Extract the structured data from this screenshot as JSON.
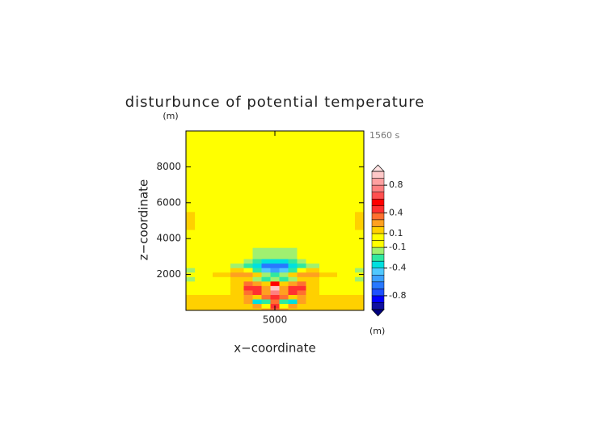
{
  "chart_data": {
    "type": "contour",
    "title": "disturbunce of potential temperature",
    "time_label": "1560 s",
    "x_label": "x−coordinate",
    "y_label": "z−coordinate",
    "x_unit": "(m)",
    "y_unit": "(m)",
    "xlim": [
      0,
      10000
    ],
    "ylim": [
      0,
      10000
    ],
    "xticks": [
      5000
    ],
    "yticks": [
      2000,
      4000,
      6000,
      8000
    ],
    "x": [
      0,
      1000,
      2000,
      3000,
      3500,
      4000,
      4500,
      5000,
      5500,
      6000,
      6500,
      7000,
      8000,
      9000,
      10000
    ],
    "y": [
      0,
      250,
      500,
      750,
      1000,
      1250,
      1500,
      1750,
      2000,
      2250,
      2500,
      2750,
      3000,
      4000,
      5000,
      6000,
      8000,
      10000
    ],
    "z": [
      [
        0.15,
        0.15,
        0.15,
        0.15,
        0.15,
        0.15,
        0.2,
        0.3,
        0.2,
        0.15,
        0.15,
        0.15,
        0.15,
        0.15,
        0.15
      ],
      [
        0.15,
        0.15,
        0.15,
        0.15,
        0.15,
        0.2,
        -0.1,
        0.4,
        -0.1,
        0.2,
        0.15,
        0.15,
        0.15,
        0.15,
        0.15
      ],
      [
        0.15,
        0.15,
        0.15,
        0.15,
        0.2,
        -0.35,
        -0.3,
        0.3,
        -0.3,
        -0.35,
        0.2,
        0.15,
        0.15,
        0.15,
        0.15
      ],
      [
        0.15,
        0.15,
        0.15,
        0.15,
        0.2,
        0.1,
        0.3,
        0.45,
        0.3,
        0.1,
        0.2,
        0.15,
        0.15,
        0.15,
        0.15
      ],
      [
        0.05,
        0.05,
        0.05,
        0.15,
        0.35,
        0.45,
        0.2,
        0.7,
        0.2,
        0.45,
        0.35,
        0.15,
        0.05,
        0.05,
        0.05
      ],
      [
        0.05,
        0.05,
        0.05,
        0.15,
        0.45,
        0.45,
        0.25,
        0.95,
        0.25,
        0.45,
        0.45,
        0.15,
        0.05,
        0.05,
        0.05
      ],
      [
        0.05,
        0.05,
        0.05,
        0.15,
        0.3,
        0.2,
        0.15,
        0.5,
        0.15,
        0.2,
        0.3,
        0.15,
        0.05,
        0.05,
        0.05
      ],
      [
        -0.15,
        0.05,
        0.05,
        0.15,
        0.15,
        -0.15,
        -0.25,
        -0.2,
        -0.25,
        -0.15,
        0.15,
        0.15,
        0.05,
        0.05,
        -0.15
      ],
      [
        0.05,
        0.05,
        0.15,
        0.25,
        0.25,
        0.1,
        -0.15,
        -0.3,
        -0.15,
        0.1,
        0.25,
        0.25,
        0.15,
        0.05,
        0.05
      ],
      [
        -0.15,
        0.05,
        0.05,
        0.15,
        0.05,
        -0.25,
        -0.45,
        -0.55,
        -0.45,
        -0.25,
        0.05,
        0.15,
        0.05,
        0.05,
        -0.15
      ],
      [
        0.05,
        0.05,
        0.05,
        -0.15,
        -0.25,
        -0.35,
        -0.65,
        -0.65,
        -0.65,
        -0.35,
        -0.25,
        -0.15,
        0.05,
        0.05,
        0.05
      ],
      [
        0.05,
        0.05,
        0.05,
        0.05,
        -0.15,
        -0.25,
        -0.35,
        -0.35,
        -0.35,
        -0.25,
        -0.15,
        0.05,
        0.05,
        0.05,
        0.05
      ],
      [
        0.05,
        0.05,
        0.05,
        0.05,
        0.05,
        -0.15,
        -0.15,
        -0.15,
        -0.15,
        -0.15,
        0.05,
        0.05,
        0.05,
        0.05,
        0.05
      ],
      [
        0,
        0,
        0,
        0,
        0,
        0,
        0,
        0,
        0,
        0,
        0,
        0,
        0,
        0,
        0
      ],
      [
        0.15,
        0,
        0,
        0,
        0,
        0,
        0,
        0,
        0,
        0,
        0,
        0,
        0,
        0,
        0.15
      ],
      [
        0,
        0,
        0,
        0,
        0,
        0,
        0,
        0,
        0,
        0,
        0,
        0,
        0,
        0,
        0
      ],
      [
        0,
        0,
        0,
        0,
        0,
        0,
        0,
        0,
        0,
        0,
        0,
        0,
        0,
        0,
        0
      ],
      [
        0,
        0,
        0,
        0,
        0,
        0,
        0,
        0,
        0,
        0,
        0,
        0,
        0,
        0,
        0
      ]
    ],
    "levels": [
      -1.0,
      -0.9,
      -0.8,
      -0.7,
      -0.6,
      -0.5,
      -0.4,
      -0.3,
      -0.2,
      -0.1,
      0.0,
      0.1,
      0.2,
      0.3,
      0.4,
      0.5,
      0.6,
      0.7,
      0.8,
      0.9,
      1.0
    ],
    "colors": [
      "#1010a0",
      "#0000ff",
      "#1e50ff",
      "#2878ff",
      "#3ca0ff",
      "#50c8ff",
      "#00e0e0",
      "#30e8a0",
      "#a0f070",
      "#ffff00",
      "#ffff00",
      "#ffd000",
      "#ffa020",
      "#ff7030",
      "#ff3030",
      "#ff0000",
      "#ff5050",
      "#ff8080",
      "#ffa0a0",
      "#ffc8c8"
    ],
    "under_color": "#000080",
    "over_color": "#ffe0e0",
    "colorbar_ticks": [
      0.8,
      0.4,
      0.1,
      -0.1,
      -0.4,
      -0.8
    ]
  }
}
